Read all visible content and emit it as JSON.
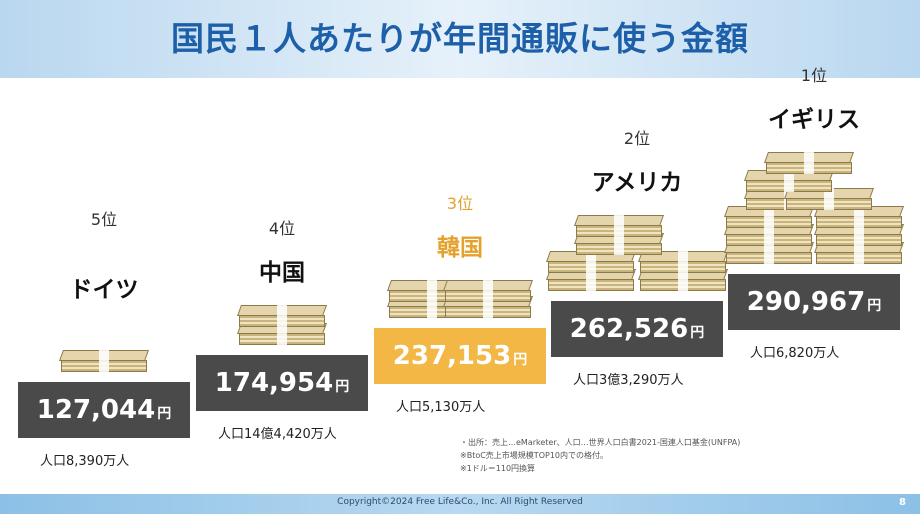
{
  "title": "国民１人あたりが年間通販に使う金額",
  "footer": {
    "copyright": "Copyright©2024 Free Life&Co., Inc. All Right Reserved",
    "page_number": "8"
  },
  "value_unit": "円",
  "colors": {
    "default_box": "#4a4a4a",
    "highlight_box": "#f2b744",
    "highlight_text": "#e4a22d",
    "title": "#1d5fa8"
  },
  "notes": [
    "・出所：売上…eMarketer、人口…世界人口白書2021-国連人口基金(UNFPA)",
    "※BtoC売上市場規模TOP10内での格付。",
    "※1ドル＝110円換算"
  ],
  "chart_data": {
    "type": "bar",
    "title": "国民１人あたりが年間通販に使う金額",
    "categories": [
      "ドイツ",
      "中国",
      "韓国",
      "アメリカ",
      "イギリス"
    ],
    "ranks": [
      "5位",
      "4位",
      "3位",
      "2位",
      "1位"
    ],
    "values": [
      127044,
      174954,
      237153,
      262526,
      290967
    ],
    "value_labels": [
      "127,044",
      "174,954",
      "237,153",
      "262,526",
      "290,967"
    ],
    "unit": "円",
    "populations": [
      "人口8,390万人",
      "人口14億4,420万人",
      "人口5,130万人",
      "人口3億3,290万人",
      "人口6,820万人"
    ],
    "highlight_index": 2,
    "bundle_counts": [
      1,
      2,
      4,
      6,
      10
    ]
  }
}
